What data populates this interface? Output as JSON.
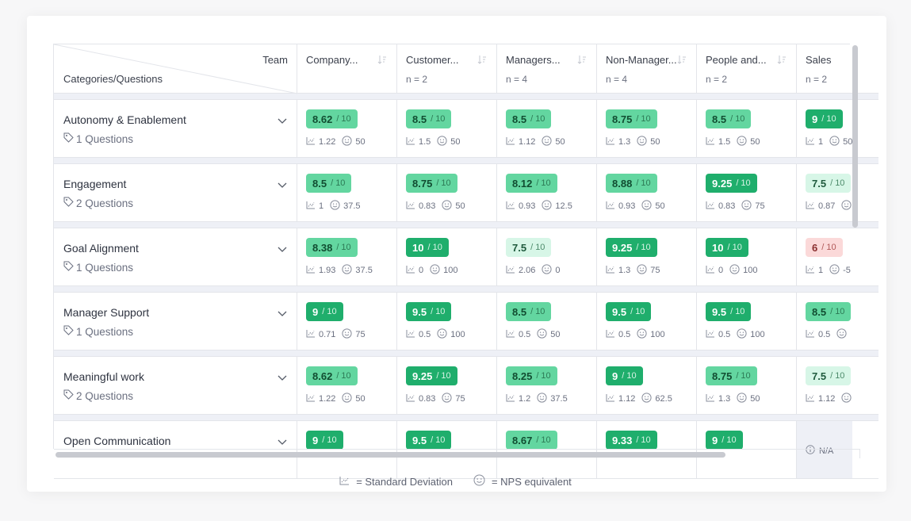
{
  "header": {
    "team_label": "Team",
    "categories_label": "Categories/Questions",
    "columns": [
      {
        "name": "Company...",
        "n": ""
      },
      {
        "name": "Customer...",
        "n": "n = 2"
      },
      {
        "name": "Managers...",
        "n": "n = 4"
      },
      {
        "name": "Non-Manager...",
        "n": "n = 4"
      },
      {
        "name": "People and...",
        "n": "n = 2"
      },
      {
        "name": "Sales",
        "n": "n = 2"
      }
    ]
  },
  "rows": [
    {
      "category": "Autonomy & Enablement",
      "questions": "1 Questions",
      "cells": [
        {
          "score": "8.62",
          "out_of": "/ 10",
          "sd": "1.22",
          "nps": "50",
          "level": "mid"
        },
        {
          "score": "8.5",
          "out_of": "/ 10",
          "sd": "1.5",
          "nps": "50",
          "level": "mid"
        },
        {
          "score": "8.5",
          "out_of": "/ 10",
          "sd": "1.12",
          "nps": "50",
          "level": "mid"
        },
        {
          "score": "8.75",
          "out_of": "/ 10",
          "sd": "1.3",
          "nps": "50",
          "level": "mid"
        },
        {
          "score": "8.5",
          "out_of": "/ 10",
          "sd": "1.5",
          "nps": "50",
          "level": "mid"
        },
        {
          "score": "9",
          "out_of": "/ 10",
          "sd": "1",
          "nps": "50",
          "level": "dark"
        }
      ]
    },
    {
      "category": "Engagement",
      "questions": "2 Questions",
      "cells": [
        {
          "score": "8.5",
          "out_of": "/ 10",
          "sd": "1",
          "nps": "37.5",
          "level": "mid"
        },
        {
          "score": "8.75",
          "out_of": "/ 10",
          "sd": "0.83",
          "nps": "50",
          "level": "mid"
        },
        {
          "score": "8.12",
          "out_of": "/ 10",
          "sd": "0.93",
          "nps": "12.5",
          "level": "mid"
        },
        {
          "score": "8.88",
          "out_of": "/ 10",
          "sd": "0.93",
          "nps": "50",
          "level": "mid"
        },
        {
          "score": "9.25",
          "out_of": "/ 10",
          "sd": "0.83",
          "nps": "75",
          "level": "dark"
        },
        {
          "score": "7.5",
          "out_of": "/ 10",
          "sd": "0.87",
          "nps": "",
          "level": "light"
        }
      ]
    },
    {
      "category": "Goal Alignment",
      "questions": "1 Questions",
      "cells": [
        {
          "score": "8.38",
          "out_of": "/ 10",
          "sd": "1.93",
          "nps": "37.5",
          "level": "mid"
        },
        {
          "score": "10",
          "out_of": "/ 10",
          "sd": "0",
          "nps": "100",
          "level": "dark"
        },
        {
          "score": "7.5",
          "out_of": "/ 10",
          "sd": "2.06",
          "nps": "0",
          "level": "light"
        },
        {
          "score": "9.25",
          "out_of": "/ 10",
          "sd": "1.3",
          "nps": "75",
          "level": "dark"
        },
        {
          "score": "10",
          "out_of": "/ 10",
          "sd": "0",
          "nps": "100",
          "level": "dark"
        },
        {
          "score": "6",
          "out_of": "/ 10",
          "sd": "1",
          "nps": "-5",
          "level": "red"
        }
      ]
    },
    {
      "category": "Manager Support",
      "questions": "1 Questions",
      "cells": [
        {
          "score": "9",
          "out_of": "/ 10",
          "sd": "0.71",
          "nps": "75",
          "level": "dark"
        },
        {
          "score": "9.5",
          "out_of": "/ 10",
          "sd": "0.5",
          "nps": "100",
          "level": "dark"
        },
        {
          "score": "8.5",
          "out_of": "/ 10",
          "sd": "0.5",
          "nps": "50",
          "level": "mid"
        },
        {
          "score": "9.5",
          "out_of": "/ 10",
          "sd": "0.5",
          "nps": "100",
          "level": "dark"
        },
        {
          "score": "9.5",
          "out_of": "/ 10",
          "sd": "0.5",
          "nps": "100",
          "level": "dark"
        },
        {
          "score": "8.5",
          "out_of": "/ 10",
          "sd": "0.5",
          "nps": "",
          "level": "mid"
        }
      ]
    },
    {
      "category": "Meaningful work",
      "questions": "2 Questions",
      "cells": [
        {
          "score": "8.62",
          "out_of": "/ 10",
          "sd": "1.22",
          "nps": "50",
          "level": "mid"
        },
        {
          "score": "9.25",
          "out_of": "/ 10",
          "sd": "0.83",
          "nps": "75",
          "level": "dark"
        },
        {
          "score": "8.25",
          "out_of": "/ 10",
          "sd": "1.2",
          "nps": "37.5",
          "level": "mid"
        },
        {
          "score": "9",
          "out_of": "/ 10",
          "sd": "1.12",
          "nps": "62.5",
          "level": "dark"
        },
        {
          "score": "8.75",
          "out_of": "/ 10",
          "sd": "1.3",
          "nps": "50",
          "level": "mid"
        },
        {
          "score": "7.5",
          "out_of": "/ 10",
          "sd": "1.12",
          "nps": "",
          "level": "light"
        }
      ]
    },
    {
      "category": "Open Communication",
      "questions": "",
      "cells": [
        {
          "score": "9",
          "out_of": "/ 10",
          "sd": "",
          "nps": "",
          "level": "dark"
        },
        {
          "score": "9.5",
          "out_of": "/ 10",
          "sd": "",
          "nps": "",
          "level": "dark"
        },
        {
          "score": "8.67",
          "out_of": "/ 10",
          "sd": "",
          "nps": "",
          "level": "mid"
        },
        {
          "score": "9.33",
          "out_of": "/ 10",
          "sd": "",
          "nps": "",
          "level": "dark"
        },
        {
          "score": "9",
          "out_of": "/ 10",
          "sd": "",
          "nps": "",
          "level": "dark"
        },
        {
          "score": "",
          "out_of": "",
          "sd": "",
          "nps": "",
          "level": "na",
          "na_text": "N/A"
        }
      ]
    }
  ],
  "legend": {
    "sd_text": "= Standard Deviation",
    "nps_text": "= NPS equivalent"
  },
  "icons": {
    "sort": "sort-icon",
    "chevron": "chevron-down-icon",
    "tag": "tag-icon",
    "sd": "chart-icon",
    "nps": "smiley-icon",
    "info": "info-icon"
  },
  "colors": {
    "dark": "#1fae6c",
    "mid": "#63d6a0",
    "light": "#d7f6e7",
    "red": "#fbd9d9",
    "na": "#eef0f6"
  }
}
